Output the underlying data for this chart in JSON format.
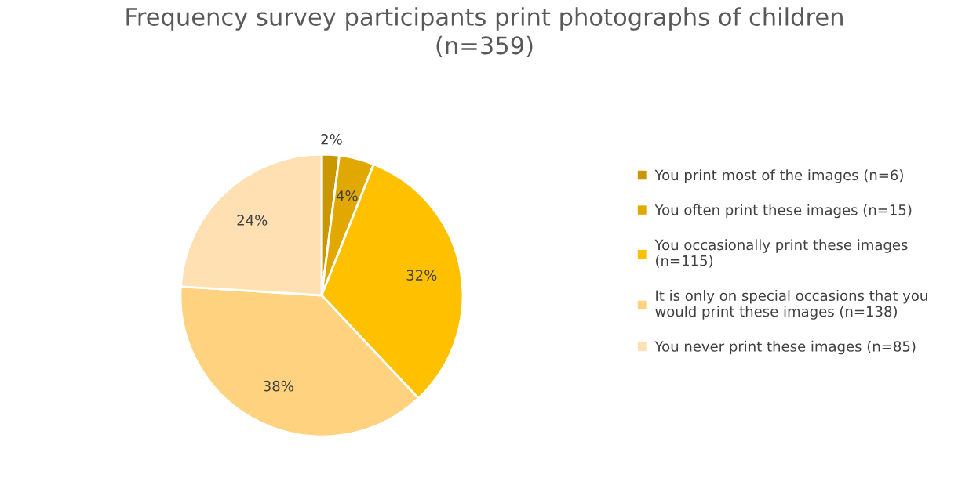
{
  "chart_data": {
    "type": "pie",
    "title": "Frequency survey participants print photographs of children\n(n=359)",
    "categories": [
      "You print most of the images (n=6)",
      "You often print these images (n=15)",
      "You occasionally print these images\n(n=115)",
      "It is only on special occasions that you\nwould print these images (n=138)",
      "You never print these images (n=85)"
    ],
    "values": [
      2,
      4,
      32,
      38,
      24
    ],
    "colors": [
      "#c99700",
      "#e0a800",
      "#ffc000",
      "#ffd27f",
      "#ffe0b2"
    ],
    "value_labels": [
      "2%",
      "4%",
      "32%",
      "38%",
      "24%"
    ],
    "legend": "right"
  }
}
